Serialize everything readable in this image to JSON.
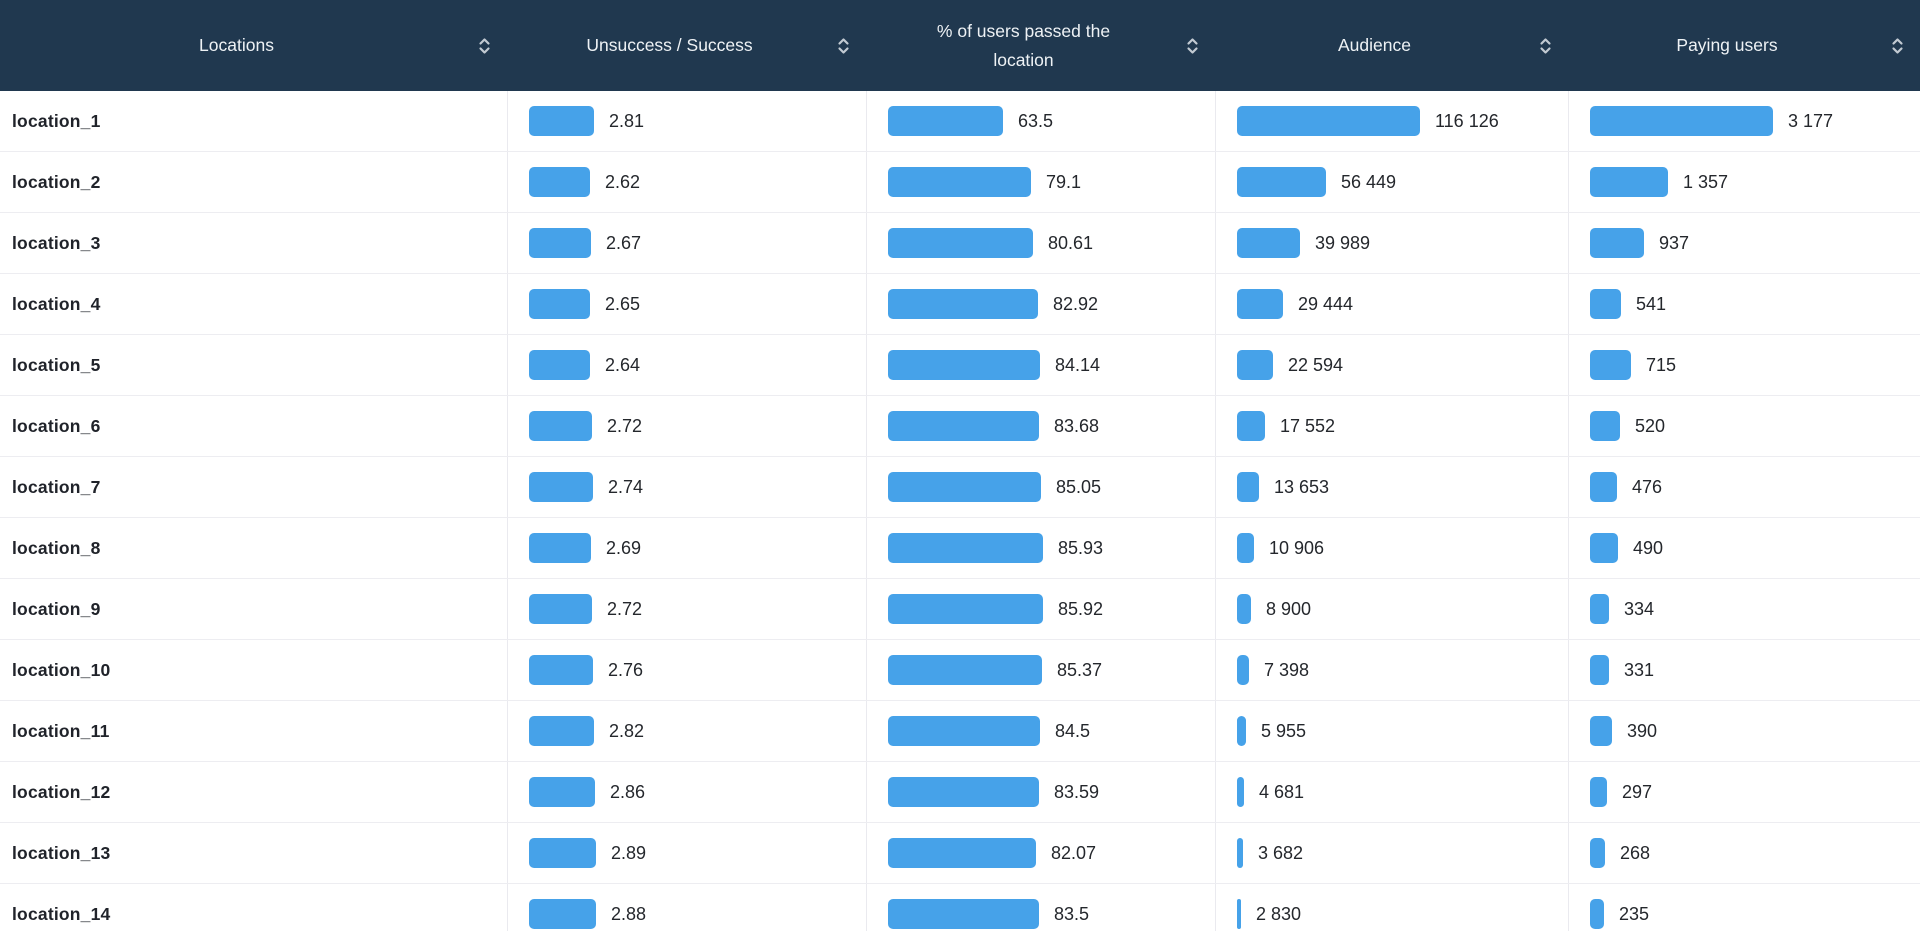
{
  "colors": {
    "header_bg": "#20384f",
    "header_text": "#eef2f5",
    "sort_icon": "#c2cad2",
    "bar": "#46a2e9",
    "row_border": "#ededf1",
    "column_border": "#eaeaef",
    "location_text": "#20232a",
    "value_text": "#24272c"
  },
  "table": {
    "columns": [
      {
        "label": "Locations"
      },
      {
        "label": "Unsuccess / Success"
      },
      {
        "label": "% of users passed the location"
      },
      {
        "label": "Audience"
      },
      {
        "label": "Paying users"
      }
    ],
    "bar_scale": {
      "ratio": {
        "max": 2.89,
        "max_width": 67,
        "min_width": 4
      },
      "percent": {
        "max": 85.93,
        "max_width": 155,
        "min_width": 4
      },
      "audience": {
        "max": 116126,
        "max_width": 183,
        "min_width": 4
      },
      "paying": {
        "max": 3177,
        "max_width": 183,
        "min_width": 4
      }
    },
    "rows": [
      {
        "location": "location_1",
        "ratio": {
          "text": "2.81",
          "value": 2.81
        },
        "percent": {
          "text": "63.5",
          "value": 63.5
        },
        "audience": {
          "text": "116 126",
          "value": 116126
        },
        "paying": {
          "text": "3 177",
          "value": 3177
        }
      },
      {
        "location": "location_2",
        "ratio": {
          "text": "2.62",
          "value": 2.62
        },
        "percent": {
          "text": "79.1",
          "value": 79.1
        },
        "audience": {
          "text": "56 449",
          "value": 56449
        },
        "paying": {
          "text": "1 357",
          "value": 1357
        }
      },
      {
        "location": "location_3",
        "ratio": {
          "text": "2.67",
          "value": 2.67
        },
        "percent": {
          "text": "80.61",
          "value": 80.61
        },
        "audience": {
          "text": "39 989",
          "value": 39989
        },
        "paying": {
          "text": "937",
          "value": 937
        }
      },
      {
        "location": "location_4",
        "ratio": {
          "text": "2.65",
          "value": 2.65
        },
        "percent": {
          "text": "82.92",
          "value": 82.92
        },
        "audience": {
          "text": "29 444",
          "value": 29444
        },
        "paying": {
          "text": "541",
          "value": 541
        }
      },
      {
        "location": "location_5",
        "ratio": {
          "text": "2.64",
          "value": 2.64
        },
        "percent": {
          "text": "84.14",
          "value": 84.14
        },
        "audience": {
          "text": "22 594",
          "value": 22594
        },
        "paying": {
          "text": "715",
          "value": 715
        }
      },
      {
        "location": "location_6",
        "ratio": {
          "text": "2.72",
          "value": 2.72
        },
        "percent": {
          "text": "83.68",
          "value": 83.68
        },
        "audience": {
          "text": "17 552",
          "value": 17552
        },
        "paying": {
          "text": "520",
          "value": 520
        }
      },
      {
        "location": "location_7",
        "ratio": {
          "text": "2.74",
          "value": 2.74
        },
        "percent": {
          "text": "85.05",
          "value": 85.05
        },
        "audience": {
          "text": "13 653",
          "value": 13653
        },
        "paying": {
          "text": "476",
          "value": 476
        }
      },
      {
        "location": "location_8",
        "ratio": {
          "text": "2.69",
          "value": 2.69
        },
        "percent": {
          "text": "85.93",
          "value": 85.93
        },
        "audience": {
          "text": "10 906",
          "value": 10906
        },
        "paying": {
          "text": "490",
          "value": 490
        }
      },
      {
        "location": "location_9",
        "ratio": {
          "text": "2.72",
          "value": 2.72
        },
        "percent": {
          "text": "85.92",
          "value": 85.92
        },
        "audience": {
          "text": "8 900",
          "value": 8900
        },
        "paying": {
          "text": "334",
          "value": 334
        }
      },
      {
        "location": "location_10",
        "ratio": {
          "text": "2.76",
          "value": 2.76
        },
        "percent": {
          "text": "85.37",
          "value": 85.37
        },
        "audience": {
          "text": "7 398",
          "value": 7398
        },
        "paying": {
          "text": "331",
          "value": 331
        }
      },
      {
        "location": "location_11",
        "ratio": {
          "text": "2.82",
          "value": 2.82
        },
        "percent": {
          "text": "84.5",
          "value": 84.5
        },
        "audience": {
          "text": "5 955",
          "value": 5955
        },
        "paying": {
          "text": "390",
          "value": 390
        }
      },
      {
        "location": "location_12",
        "ratio": {
          "text": "2.86",
          "value": 2.86
        },
        "percent": {
          "text": "83.59",
          "value": 83.59
        },
        "audience": {
          "text": "4 681",
          "value": 4681
        },
        "paying": {
          "text": "297",
          "value": 297
        }
      },
      {
        "location": "location_13",
        "ratio": {
          "text": "2.89",
          "value": 2.89
        },
        "percent": {
          "text": "82.07",
          "value": 82.07
        },
        "audience": {
          "text": "3 682",
          "value": 3682
        },
        "paying": {
          "text": "268",
          "value": 268
        }
      },
      {
        "location": "location_14",
        "ratio": {
          "text": "2.88",
          "value": 2.88
        },
        "percent": {
          "text": "83.5",
          "value": 83.5
        },
        "audience": {
          "text": "2 830",
          "value": 2830
        },
        "paying": {
          "text": "235",
          "value": 235
        }
      }
    ]
  },
  "chart_data": {
    "type": "table",
    "title": "",
    "columns": [
      "Locations",
      "Unsuccess / Success",
      "% of users passed the location",
      "Audience",
      "Paying users"
    ],
    "rows": [
      [
        "location_1",
        2.81,
        63.5,
        116126,
        3177
      ],
      [
        "location_2",
        2.62,
        79.1,
        56449,
        1357
      ],
      [
        "location_3",
        2.67,
        80.61,
        39989,
        937
      ],
      [
        "location_4",
        2.65,
        82.92,
        29444,
        541
      ],
      [
        "location_5",
        2.64,
        84.14,
        22594,
        715
      ],
      [
        "location_6",
        2.72,
        83.68,
        17552,
        520
      ],
      [
        "location_7",
        2.74,
        85.05,
        13653,
        476
      ],
      [
        "location_8",
        2.69,
        85.93,
        10906,
        490
      ],
      [
        "location_9",
        2.72,
        85.92,
        8900,
        334
      ],
      [
        "location_10",
        2.76,
        85.37,
        7398,
        331
      ],
      [
        "location_11",
        2.82,
        84.5,
        5955,
        390
      ],
      [
        "location_12",
        2.86,
        83.59,
        4681,
        297
      ],
      [
        "location_13",
        2.89,
        82.07,
        3682,
        268
      ],
      [
        "location_14",
        2.88,
        83.5,
        2830,
        235
      ]
    ],
    "layout_hints": {
      "in_cell_bars": true,
      "bar_color": "#46a2e9",
      "sortable_columns": true,
      "header_background": "#20384f"
    }
  }
}
